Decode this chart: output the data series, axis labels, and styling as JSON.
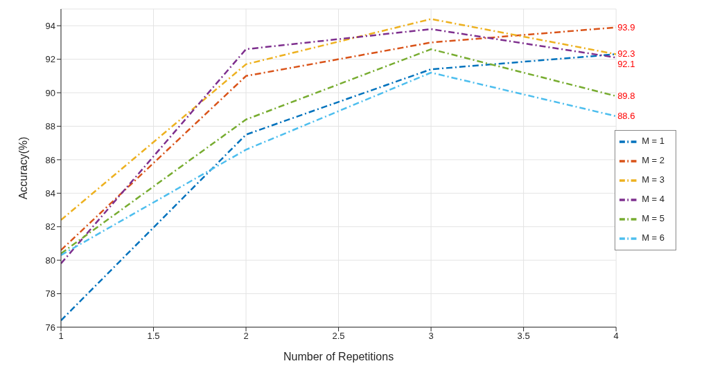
{
  "chart_data": {
    "type": "line",
    "xlabel": "Number of Repetitions",
    "ylabel": "Accuracy(%)",
    "x": [
      1,
      2,
      3,
      4
    ],
    "series": [
      {
        "name": "M = 1",
        "color": "#0072bd",
        "values": [
          76.4,
          87.5,
          91.4,
          92.3
        ],
        "value_labels": [
          null,
          null,
          null,
          null
        ]
      },
      {
        "name": "M = 2",
        "color": "#d95319",
        "values": [
          80.6,
          91.0,
          93.0,
          93.9
        ],
        "value_labels": [
          null,
          null,
          null,
          "93.9"
        ]
      },
      {
        "name": "M = 3",
        "color": "#edb120",
        "values": [
          82.4,
          91.7,
          94.4,
          92.3
        ],
        "value_labels": [
          null,
          null,
          null,
          "92.3"
        ]
      },
      {
        "name": "M = 4",
        "color": "#7e2f8e",
        "values": [
          79.8,
          92.6,
          93.8,
          92.1
        ],
        "value_labels": [
          null,
          null,
          null,
          "92.1"
        ]
      },
      {
        "name": "M = 5",
        "color": "#77ac30",
        "values": [
          80.4,
          88.4,
          92.6,
          89.8
        ],
        "value_labels": [
          null,
          null,
          null,
          "89.8"
        ]
      },
      {
        "name": "M = 6",
        "color": "#4dbeee",
        "values": [
          80.3,
          86.6,
          91.2,
          88.6
        ],
        "value_labels": [
          null,
          null,
          null,
          "88.6"
        ]
      }
    ],
    "xlim": [
      1,
      4
    ],
    "xticks": [
      1,
      1.5,
      2,
      2.5,
      3,
      3.5,
      4
    ],
    "ylim": [
      76,
      95
    ],
    "yticks": [
      76,
      78,
      80,
      82,
      84,
      86,
      88,
      90,
      92,
      94
    ],
    "grid": true,
    "legend": "right",
    "marker": "none",
    "line_style": "dashed"
  }
}
